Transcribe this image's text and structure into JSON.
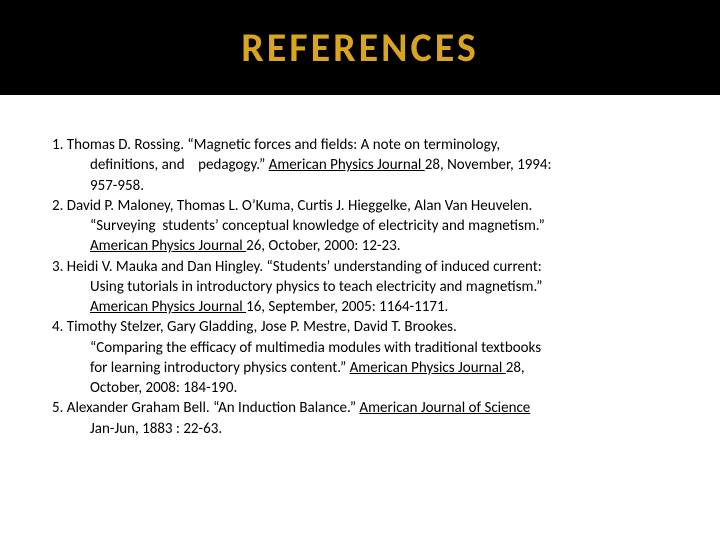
{
  "title": "REFERENCES",
  "colors": {
    "title_bg": "#000000",
    "title_fg": "#d9a520",
    "page_bg": "#ffffff",
    "text": "#000000"
  },
  "typography": {
    "title_fontsize": 40,
    "title_weight": 700,
    "title_letter_spacing": 3,
    "body_fontsize": 15,
    "body_line_height": 1.35,
    "font_family": "Calibri, Arial, sans-serif"
  },
  "refs": {
    "r1": {
      "l1": "1. Thomas D. Rossing. “Magnetic forces and fields: A note on terminology,",
      "l2a": "definitions, and    pedagogy.” ",
      "l2u": "American Physics Journal ",
      "l2b": "28, November, 1994:",
      "l3": "957-958."
    },
    "r2": {
      "l1": "2. David P. Maloney, Thomas L. O’Kuma, Curtis J. Hieggelke, Alan Van Heuvelen.",
      "l2": "“Surveying  students’ conceptual knowledge of electricity and magnetism.”",
      "l3u": "American Physics Journal ",
      "l3b": "26, October, 2000: 12-23."
    },
    "r3": {
      "l1": "3.  Heidi V. Mauka and Dan Hingley. “Students’ understanding of induced current:",
      "l2": "Using tutorials in introductory physics to teach electricity and magnetism.”",
      "l3u": "American Physics Journal ",
      "l3b": "16, September, 2005: 1164-1171."
    },
    "r4": {
      "l1": "4. Timothy Stelzer, Gary Gladding, Jose P. Mestre, David T. Brookes.",
      "l2": "“Comparing the efficacy of multimedia modules with traditional textbooks",
      "l3a": "for learning introductory physics content.” ",
      "l3u": "American Physics Journal ",
      "l3b": " 28,",
      "l4": "October, 2008: 184-190."
    },
    "r5": {
      "l1a": "5. Alexander Graham Bell. “An Induction Balance.” ",
      "l1u": "American Journal of Science ",
      "l2": "Jan-Jun, 1883 : 22-63."
    }
  }
}
